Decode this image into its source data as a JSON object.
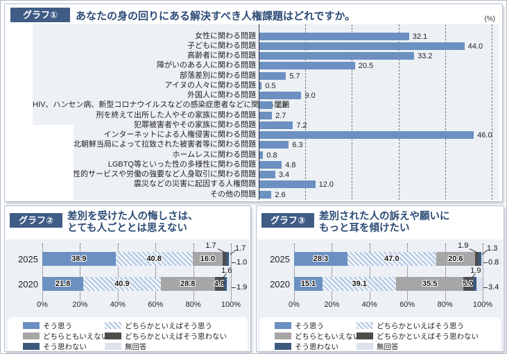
{
  "colors": {
    "badge_bg": "#3e5c85",
    "title_text": "#2b4a75",
    "panel_border": "#b6c0ce",
    "chart_bg": "#edf0f5",
    "agree_blue": "#6b90c1",
    "hatch_base": "#bccee6",
    "neither_gray": "#a6a6a6",
    "somewhat_disagree_darkgray": "#4d4d4d",
    "disagree_navy": "#3c5a7d",
    "no_answer_pale": "#dce3ee"
  },
  "graphs": {
    "g1": {
      "badge": "グラフ①",
      "title": "あなたの身の回りにある解決すべき人権課題はどれですか。",
      "unit": "(%)"
    },
    "g2": {
      "badge": "グラフ②",
      "title_line1": "差別を受けた人の悔しさは、",
      "title_line2": "とても人ごととは思えない"
    },
    "g3": {
      "badge": "グラフ③",
      "title_line1": "差別された人の訴えや願いに",
      "title_line2": "もっと耳を傾けたい"
    }
  },
  "legend": {
    "items": [
      {
        "key": "agree",
        "label": "そう思う"
      },
      {
        "key": "somewhat-agree",
        "label": "どちらかといえばそう思う"
      },
      {
        "key": "neither",
        "label": "どちらともいえない"
      },
      {
        "key": "somewhat-disagree",
        "label": "どちらかといえばそう思わない"
      },
      {
        "key": "disagree",
        "label": "そう思わない"
      },
      {
        "key": "no-answer",
        "label": "無回答"
      }
    ]
  },
  "chart_data": [
    {
      "id": "g1",
      "type": "bar",
      "orientation": "horizontal",
      "title": "あなたの身の回りにある解決すべき人権課題はどれですか。",
      "unit": "%",
      "xlim": [
        0,
        50
      ],
      "gridlines": [
        10,
        20,
        30,
        40,
        50
      ],
      "grid_style": "dashed",
      "categories": [
        "女性に関わる問題",
        "子どもに関わる問題",
        "高齢者に関わる問題",
        "障がいのある人に関わる問題",
        "部落差別に関わる問題",
        "アイヌの人々に関わる問題",
        "外国人に関わる問題",
        "HIV、ハンセン病、新型コロナウイルスなどの感染症患者などに関わる問題",
        "刑を終えて出所した人やその家族に関わる問題",
        "犯罪被害者やその家族に関わる問題",
        "インターネットによる人権侵害に関わる問題",
        "北朝鮮当局によって拉致された被害者等に関わる問題",
        "ホームレスに関わる問題",
        "LGBTQ等といった性の多様性に関わる問題",
        "性的サービスや労働の強要など人身取引に関わる問題",
        "震災などの災害に起因する人権問題",
        "その他の問題"
      ],
      "values": [
        32.1,
        44.0,
        33.2,
        20.5,
        5.7,
        0.5,
        9.0,
        2.8,
        2.7,
        7.2,
        46.0,
        6.3,
        0.8,
        4.8,
        3.4,
        12.0,
        2.6
      ]
    },
    {
      "id": "g2",
      "type": "stacked-bar",
      "title": "差別を受けた人の悔しさは、とても人ごととは思えない",
      "categories": [
        "2025",
        "2020"
      ],
      "xlim": [
        0,
        100
      ],
      "x_ticks": [
        "0%",
        "20%",
        "40%",
        "60%",
        "80%",
        "100%"
      ],
      "series": [
        {
          "name": "そう思う",
          "values": [
            38.9,
            21.8
          ]
        },
        {
          "name": "どちらかといえばそう思う",
          "values": [
            40.8,
            40.9
          ]
        },
        {
          "name": "どちらともいえない",
          "values": [
            16.0,
            28.8
          ]
        },
        {
          "name": "どちらかといえばそう思わない",
          "values": [
            1.7,
            4.8
          ]
        },
        {
          "name": "そう思わない",
          "values": [
            1.7,
            1.6
          ]
        },
        {
          "name": "無回答",
          "values": [
            1.0,
            1.9
          ]
        }
      ]
    },
    {
      "id": "g3",
      "type": "stacked-bar",
      "title": "差別された人の訴えや願いにもっと耳を傾けたい",
      "categories": [
        "2025",
        "2020"
      ],
      "xlim": [
        0,
        100
      ],
      "x_ticks": [
        "0%",
        "20%",
        "40%",
        "60%",
        "80%",
        "100%"
      ],
      "series": [
        {
          "name": "そう思う",
          "values": [
            28.3,
            15.1
          ]
        },
        {
          "name": "どちらかといえばそう思う",
          "values": [
            47.0,
            39.1
          ]
        },
        {
          "name": "どちらともいえない",
          "values": [
            20.6,
            35.5
          ]
        },
        {
          "name": "どちらかといえばそう思わない",
          "values": [
            1.9,
            5.0
          ]
        },
        {
          "name": "そう思わない",
          "values": [
            1.3,
            1.9
          ]
        },
        {
          "name": "無回答",
          "values": [
            0.8,
            3.4
          ]
        }
      ]
    }
  ]
}
